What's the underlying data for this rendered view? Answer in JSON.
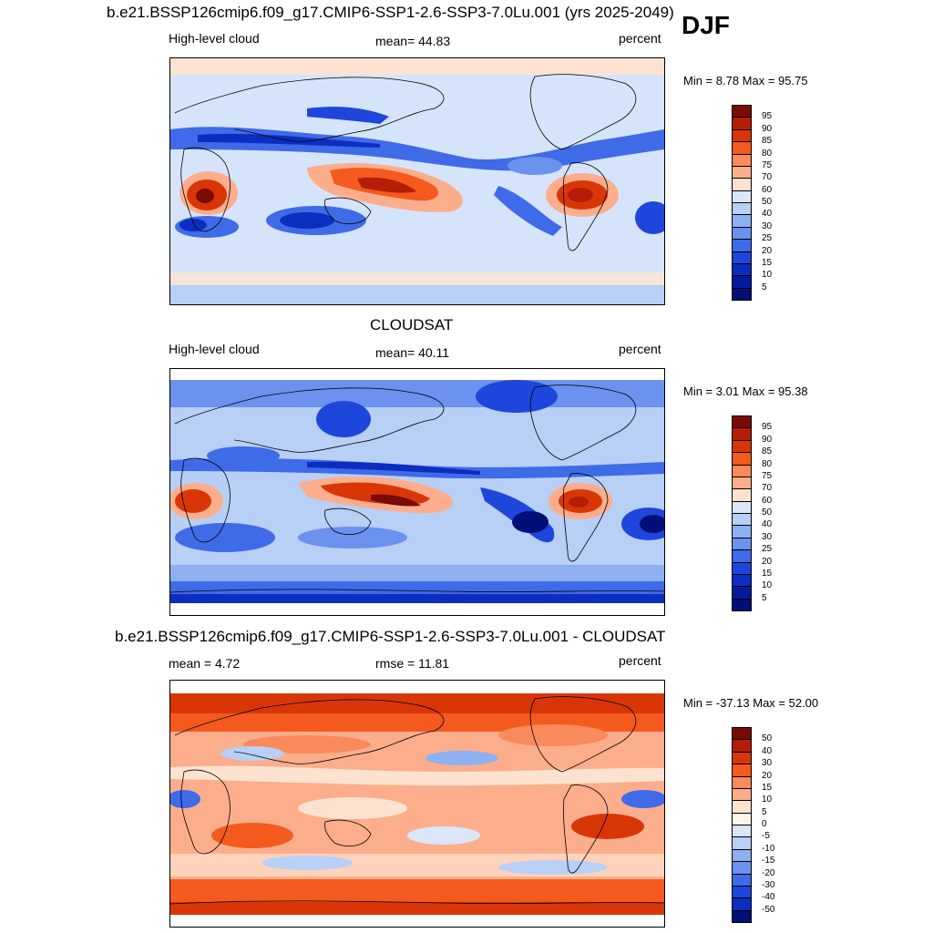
{
  "season": "DJF",
  "panels": [
    {
      "title": "b.e21.BSSP126cmip6.f09_g17.CMIP6-SSP1-2.6-SSP3-7.0Lu.001 (yrs 2025-2049)",
      "left_label": "High-level cloud",
      "center_label": "mean=  44.83",
      "right_label": "percent",
      "minmax": "Min =   8.78 Max =  95.75",
      "colorbar_ticks": [
        "95",
        "90",
        "85",
        "80",
        "75",
        "70",
        "60",
        "50",
        "40",
        "30",
        "25",
        "20",
        "15",
        "10",
        "5"
      ],
      "colorbar_colors": [
        "#7a0a05",
        "#b41d06",
        "#d93608",
        "#f45a1e",
        "#f98a5c",
        "#fcae8c",
        "#fde3cf",
        "#dbe7f8",
        "#b8cff6",
        "#8db0f1",
        "#6a92ee",
        "#3f6ae8",
        "#1f46dc",
        "#0b2ec0",
        "#031b9c",
        "#020f78"
      ]
    },
    {
      "title": "CLOUDSAT",
      "left_label": "High-level cloud",
      "center_label": "mean=  40.11",
      "right_label": "percent",
      "minmax": "Min =   3.01 Max =  95.38",
      "colorbar_ticks": [
        "95",
        "90",
        "85",
        "80",
        "75",
        "70",
        "60",
        "50",
        "40",
        "30",
        "25",
        "20",
        "15",
        "10",
        "5"
      ],
      "colorbar_colors": [
        "#7a0a05",
        "#b41d06",
        "#d93608",
        "#f45a1e",
        "#f98a5c",
        "#fcae8c",
        "#fde3cf",
        "#dbe7f8",
        "#b8cff6",
        "#8db0f1",
        "#6a92ee",
        "#3f6ae8",
        "#1f46dc",
        "#0b2ec0",
        "#031b9c",
        "#020f78"
      ]
    },
    {
      "title": "b.e21.BSSP126cmip6.f09_g17.CMIP6-SSP1-2.6-SSP3-7.0Lu.001 - CLOUDSAT",
      "left_label": "mean =   4.72",
      "center_label": "rmse =  11.81",
      "right_label": "percent",
      "minmax": "Min = -37.13 Max =  52.00",
      "colorbar_ticks": [
        "50",
        "40",
        "30",
        "20",
        "15",
        "10",
        "5",
        "0",
        "-5",
        "-10",
        "-15",
        "-20",
        "-30",
        "-40",
        "-50"
      ],
      "colorbar_colors": [
        "#7a0a05",
        "#b41d06",
        "#d93608",
        "#f45a1e",
        "#f98a5c",
        "#fcae8c",
        "#fde3cf",
        "#fff4ea",
        "#dbe7f8",
        "#b8cff6",
        "#8db0f1",
        "#6a92ee",
        "#3f6ae8",
        "#1f46dc",
        "#0b2ec0",
        "#020f78"
      ]
    }
  ]
}
